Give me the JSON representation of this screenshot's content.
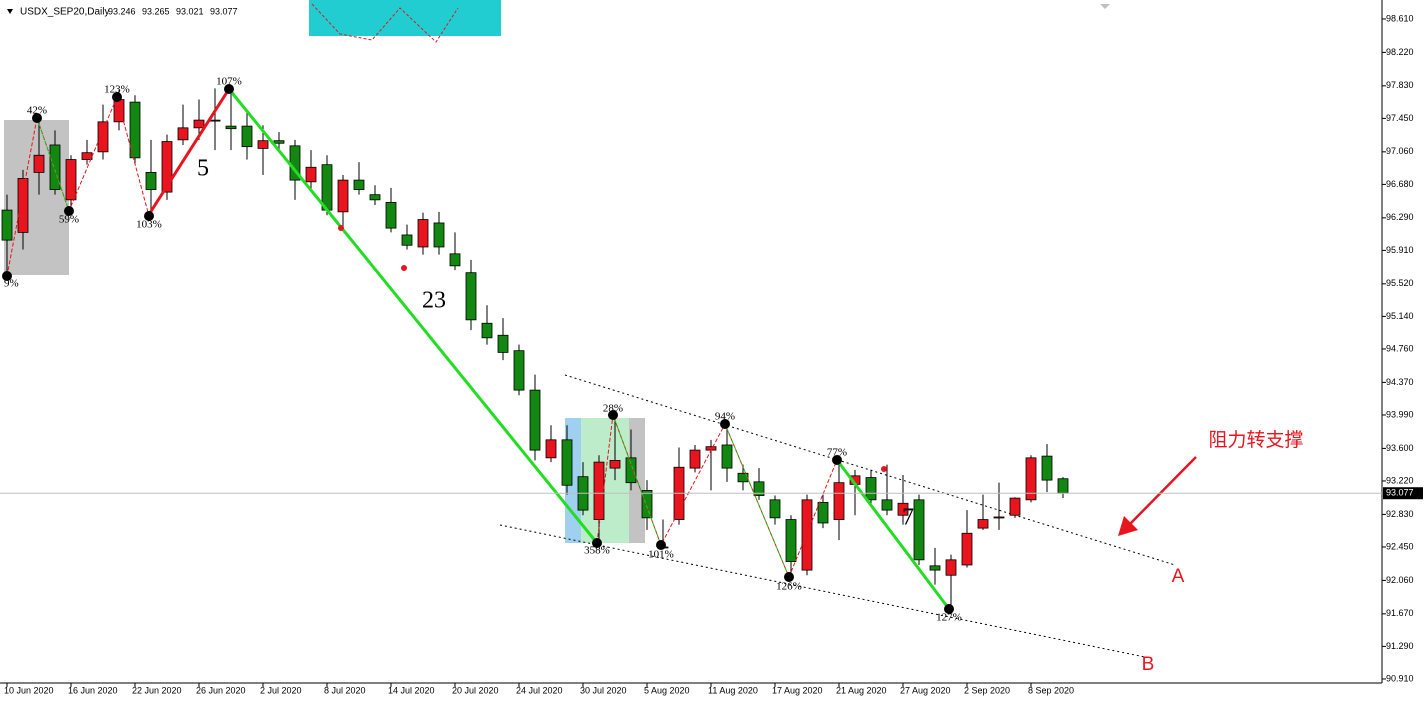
{
  "chart_data": {
    "type": "candlestick",
    "title": "USDX_SEP20,Daily",
    "categories": [
      "10 Jun 2020",
      null,
      null,
      null,
      "16 Jun 2020",
      null,
      null,
      null,
      "22 Jun 2020",
      null,
      null,
      null,
      "26 Jun 2020",
      null,
      null,
      null,
      "2 Jul 2020",
      null,
      null,
      null,
      "8 Jul 2020",
      null,
      null,
      null,
      "14 Jul 2020",
      null,
      null,
      null,
      "20 Jul 2020",
      null,
      null,
      null,
      "24 Jul 2020",
      null,
      null,
      null,
      "30 Jul 2020",
      null,
      null,
      null,
      "5 Aug 2020",
      null,
      null,
      null,
      "11 Aug 2020",
      null,
      null,
      null,
      "17 Aug 2020",
      null,
      null,
      null,
      "21 Aug 2020",
      null,
      null,
      null,
      "27 Aug 2020",
      null,
      null,
      null,
      "2 Sep 2020",
      null,
      null,
      null,
      "8 Sep 2020",
      null,
      null
    ],
    "open": [
      96.38,
      96.12,
      96.82,
      97.14,
      96.5,
      96.97,
      97.06,
      97.41,
      97.64,
      96.82,
      96.59,
      97.2,
      97.34,
      97.42,
      97.36,
      97.36,
      97.1,
      97.19,
      97.13,
      96.71,
      96.91,
      96.36,
      96.73,
      96.56,
      96.47,
      96.09,
      95.95,
      96.23,
      95.87,
      95.65,
      95.06,
      94.92,
      94.74,
      94.28,
      93.49,
      93.7,
      93.27,
      92.77,
      93.37,
      93.49,
      93.11,
      92.44,
      92.77,
      93.37,
      93.58,
      93.64,
      93.31,
      93.21,
      93.0,
      92.77,
      92.18,
      92.97,
      92.77,
      93.18,
      93.26,
      93.0,
      92.82,
      93.0,
      92.23,
      92.12,
      92.24,
      92.67,
      92.79,
      92.82,
      93.0,
      93.51,
      93.246
    ],
    "high": [
      96.56,
      96.85,
      97.46,
      97.31,
      97.02,
      97.2,
      97.61,
      97.78,
      97.72,
      97.2,
      97.26,
      97.61,
      97.67,
      97.8,
      97.78,
      97.55,
      97.37,
      97.29,
      97.2,
      97.08,
      97.02,
      96.79,
      96.94,
      96.67,
      96.64,
      96.21,
      96.35,
      96.36,
      96.12,
      95.8,
      95.27,
      95.12,
      94.81,
      94.46,
      93.87,
      93.87,
      93.44,
      93.52,
      94.05,
      93.82,
      93.23,
      92.77,
      93.61,
      93.64,
      93.7,
      93.93,
      93.41,
      93.37,
      93.05,
      92.82,
      93.06,
      93.06,
      93.52,
      93.35,
      93.35,
      93.41,
      93.29,
      93.06,
      92.44,
      92.36,
      92.88,
      93.06,
      93.2,
      93.03,
      93.52,
      93.65,
      93.265
    ],
    "low": [
      95.59,
      95.92,
      96.56,
      96.56,
      96.32,
      96.91,
      96.97,
      97.31,
      96.91,
      96.32,
      96.5,
      97.14,
      97.2,
      97.08,
      97.08,
      96.97,
      96.79,
      97.08,
      96.5,
      96.62,
      96.32,
      96.17,
      96.56,
      96.44,
      96.12,
      95.92,
      95.86,
      95.86,
      95.68,
      94.98,
      94.81,
      94.63,
      94.22,
      93.46,
      93.44,
      93.06,
      92.82,
      92.47,
      93.23,
      93.11,
      92.65,
      92.42,
      92.71,
      93.32,
      93.11,
      93.21,
      93.11,
      93.0,
      92.71,
      92.06,
      92.12,
      92.67,
      92.53,
      92.82,
      92.94,
      92.82,
      92.71,
      92.24,
      92.01,
      91.74,
      92.21,
      92.65,
      92.65,
      92.79,
      92.97,
      93.09,
      93.021
    ],
    "close": [
      96.03,
      96.75,
      97.02,
      96.62,
      96.97,
      97.05,
      97.41,
      97.67,
      96.99,
      96.62,
      97.18,
      97.34,
      97.43,
      97.43,
      97.33,
      97.12,
      97.19,
      97.16,
      96.73,
      96.88,
      96.38,
      96.73,
      96.62,
      96.5,
      96.17,
      95.97,
      96.27,
      95.95,
      95.73,
      95.1,
      94.89,
      94.72,
      94.28,
      93.58,
      93.7,
      93.17,
      92.88,
      93.44,
      93.46,
      93.2,
      92.79,
      92.45,
      93.38,
      93.58,
      93.62,
      93.37,
      93.21,
      93.05,
      92.79,
      92.28,
      93.0,
      92.73,
      93.2,
      93.28,
      93.0,
      92.88,
      92.96,
      92.3,
      92.18,
      92.3,
      92.61,
      92.77,
      92.8,
      93.02,
      93.49,
      93.23,
      93.077
    ],
    "up_color": "#e8141e",
    "down_color": "#128712",
    "ylim": [
      90.863,
      98.773
    ],
    "yticks": [
      {
        "value": 98.61,
        "label": "98.610"
      },
      {
        "value": 98.22,
        "label": "98.220"
      },
      {
        "value": 97.83,
        "label": "97.830"
      },
      {
        "value": 97.45,
        "label": "97.450"
      },
      {
        "value": 97.06,
        "label": "97.060"
      },
      {
        "value": 96.68,
        "label": "96.680"
      },
      {
        "value": 96.29,
        "label": "96.290"
      },
      {
        "value": 95.91,
        "label": "95.910"
      },
      {
        "value": 95.52,
        "label": "95.520"
      },
      {
        "value": 95.14,
        "label": "95.140"
      },
      {
        "value": 94.76,
        "label": "94.760"
      },
      {
        "value": 94.37,
        "label": "94.370"
      },
      {
        "value": 93.99,
        "label": "93.990"
      },
      {
        "value": 93.6,
        "label": "93.600"
      },
      {
        "value": 93.22,
        "label": "93.220"
      },
      {
        "value": 92.83,
        "label": "92.830"
      },
      {
        "value": 92.45,
        "label": "92.450"
      },
      {
        "value": 92.06,
        "label": "92.060"
      },
      {
        "value": 91.67,
        "label": "91.670"
      },
      {
        "value": 91.29,
        "label": "91.290"
      },
      {
        "value": 90.91,
        "label": "90.910"
      }
    ],
    "annotations": [
      "42%",
      "59%",
      "123%",
      "103%",
      "107%",
      "9%",
      "358%",
      "28%",
      "101%",
      "94%",
      "126%",
      "77%",
      "127%",
      "5",
      "23",
      "7",
      "阻力转支撑",
      "A",
      "B"
    ]
  }
}
